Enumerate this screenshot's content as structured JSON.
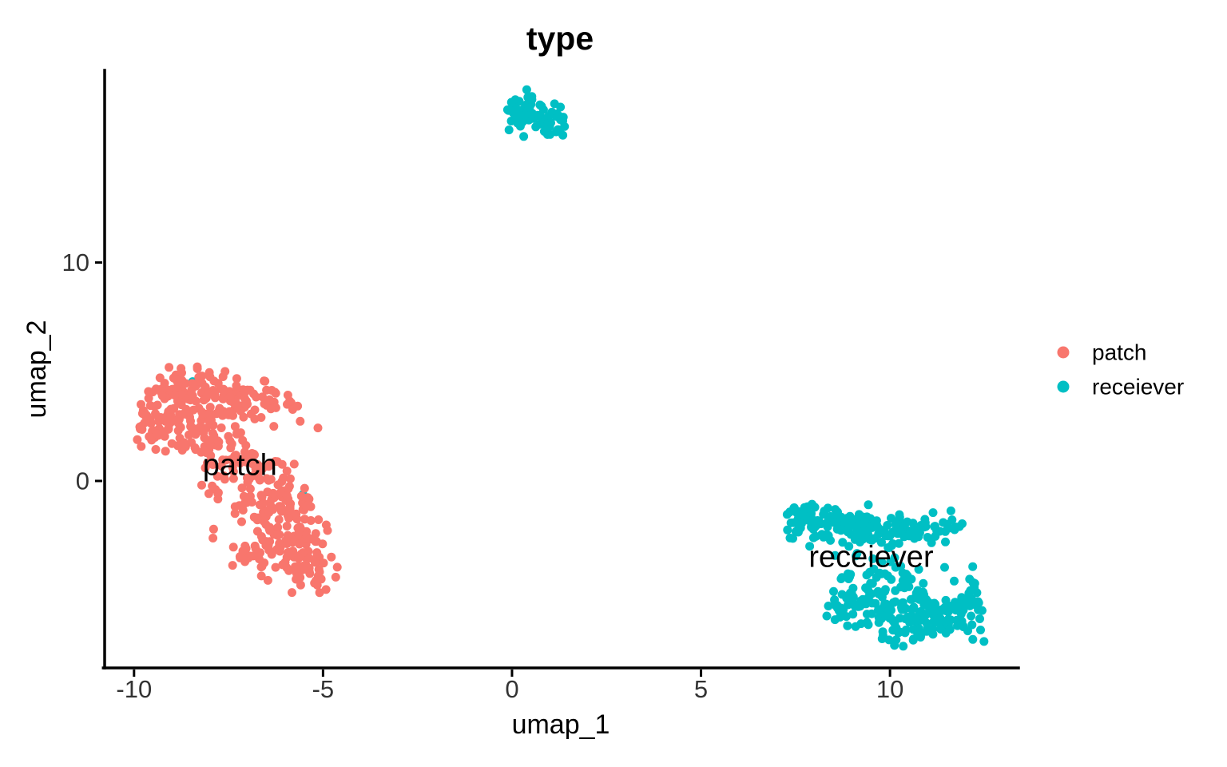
{
  "chart_data": {
    "type": "scatter",
    "title": "type",
    "xlabel": "umap_1",
    "ylabel": "umap_2",
    "xlim": [
      -10.82,
      13.4
    ],
    "ylim": [
      -8.56,
      18.8
    ],
    "x_ticks": [
      -10,
      -5,
      0,
      5,
      10
    ],
    "y_ticks": [
      0,
      10
    ],
    "grid": "off",
    "legend_position": "right",
    "point_radius": 5.5,
    "seed": 42,
    "groups": [
      {
        "series": "receiever",
        "name": "receiever-strays",
        "color": "#00BFC4",
        "bounds": null,
        "blobs": [],
        "points": [
          [
            -8.45,
            4.55
          ],
          [
            -5.53,
            -0.62
          ]
        ],
        "label": null
      },
      {
        "series": "patch",
        "name": "patch",
        "color": "#F8766D",
        "bounds": [
          -10.02,
          -4.62,
          -5.25,
          5.45
        ],
        "blobs": [
          [
            -8.6,
            4.3,
            0.55,
            0.45,
            70
          ],
          [
            -7.1,
            3.6,
            0.75,
            0.5,
            75
          ],
          [
            -9.35,
            2.9,
            0.42,
            0.6,
            60
          ],
          [
            -8.1,
            2.2,
            0.6,
            0.55,
            55
          ],
          [
            -7.3,
            0.7,
            0.55,
            0.75,
            55
          ],
          [
            -6.5,
            -0.8,
            0.6,
            0.75,
            65
          ],
          [
            -5.95,
            -2.4,
            0.55,
            0.7,
            70
          ],
          [
            -5.45,
            -4.0,
            0.5,
            0.6,
            50
          ],
          [
            -6.9,
            -3.2,
            0.4,
            0.5,
            25
          ]
        ],
        "points": [],
        "label": {
          "text": "patch",
          "x": -7.2,
          "y": 0.72
        }
      },
      {
        "series": "receiever",
        "name": "receiever-main",
        "color": "#00BFC4",
        "bounds": [
          7.25,
          12.5,
          -7.8,
          -1.05
        ],
        "blobs": [
          [
            7.7,
            -1.7,
            0.3,
            0.5,
            45
          ],
          [
            8.6,
            -2.0,
            0.55,
            0.45,
            60
          ],
          [
            9.6,
            -2.4,
            0.55,
            0.45,
            50
          ],
          [
            10.7,
            -2.2,
            0.45,
            0.4,
            35
          ],
          [
            11.5,
            -1.95,
            0.25,
            0.3,
            12
          ],
          [
            9.2,
            -5.6,
            0.45,
            0.65,
            55
          ],
          [
            10.3,
            -6.1,
            0.6,
            0.6,
            75
          ],
          [
            11.4,
            -6.3,
            0.55,
            0.55,
            70
          ],
          [
            12.2,
            -5.3,
            0.25,
            0.6,
            25
          ],
          [
            10.0,
            -4.3,
            0.55,
            0.45,
            30
          ]
        ],
        "points": [],
        "label": {
          "text": "receiever",
          "x": 9.5,
          "y": -3.5
        }
      },
      {
        "series": "receiever",
        "name": "receiever-top",
        "color": "#00BFC4",
        "bounds": [
          -0.32,
          1.5,
          15.5,
          17.95
        ],
        "blobs": [
          [
            0.3,
            16.9,
            0.4,
            0.45,
            45
          ],
          [
            0.95,
            16.5,
            0.35,
            0.4,
            30
          ]
        ],
        "points": [],
        "label": null
      }
    ]
  },
  "legend": {
    "items": [
      {
        "label": "patch",
        "color": "#F8766D"
      },
      {
        "label": "receiever",
        "color": "#00BFC4"
      }
    ]
  }
}
